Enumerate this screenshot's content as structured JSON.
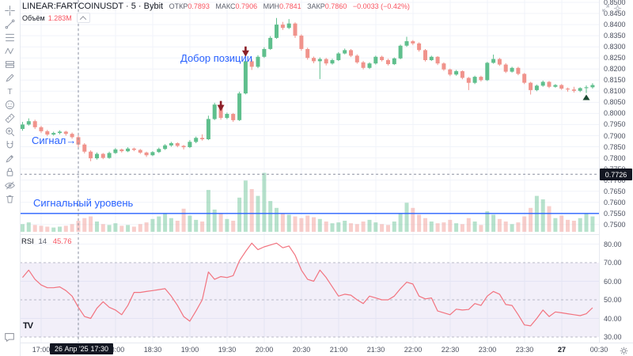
{
  "header": {
    "symbol_title": "LINEAR:FARTCOINUSDT · 5 · Bybit",
    "ohlc": {
      "open_label": "ОТКР",
      "open_value": "0.7893",
      "high_label": "МАКС",
      "high_value": "0.7906",
      "low_label": "МИН",
      "low_value": "0.7841",
      "close_label": "ЗАКР",
      "close_value": "0.7860",
      "change": "−0.0033 (−0.42%)"
    },
    "volume_label": "Объём",
    "volume_value": "1.283M"
  },
  "toolbar": {
    "tools": [
      "crosshair",
      "trend-line",
      "fib-retracement",
      "xabcd-pattern",
      "long-position",
      "brush",
      "text",
      "emoji",
      "measure",
      "zoom-in",
      "magnet",
      "draw-mode",
      "lock-all",
      "hide-all",
      "remove-all"
    ],
    "bottom_tool": "chat"
  },
  "annotations": {
    "signal": "Сигнал",
    "add_position": "Добор позиции",
    "signal_level": "Сигнальный уровень"
  },
  "indicator": {
    "name": "RSI",
    "period": "14",
    "value": "45.76"
  },
  "crosshair": {
    "price": "0.7726",
    "date": "26 Апр '25",
    "time": "17:30"
  },
  "axes": {
    "price_ticks": [
      "0.8500",
      "0.8450",
      "0.8400",
      "0.8350",
      "0.8300",
      "0.8250",
      "0.8200",
      "0.8150",
      "0.8100",
      "0.8050",
      "0.8000",
      "0.7950",
      "0.7900",
      "0.7850",
      "0.7800",
      "0.7750",
      "0.7700",
      "0.7650",
      "0.7600",
      "0.7550",
      "0.7500"
    ],
    "rsi_ticks": [
      "80.00",
      "70.00",
      "60.00",
      "50.00",
      "40.00",
      "30.00"
    ],
    "time_ticks": [
      "17:00",
      "17:30",
      "18:00",
      "18:30",
      "19:00",
      "19:30",
      "20:00",
      "20:30",
      "21:00",
      "21:30",
      "22:00",
      "22:30",
      "23:00",
      "23:30",
      "27",
      "00:30"
    ]
  },
  "colors": {
    "up": "#5fbf8d",
    "down": "#f0938c",
    "accent": "#2962ff",
    "rsi_line": "#f2737f",
    "value_red": "#f7525f",
    "crosshair_label_bg": "#131722",
    "rsi_band_fill": "rgba(124,98,200,0.10)",
    "grid": "#f0f3fa"
  },
  "chart_data": {
    "type": "candlestick",
    "symbol": "LINEAR:FARTCOINUSDT",
    "interval": "5",
    "exchange": "Bybit",
    "start_time": "16:45",
    "step_minutes": 5,
    "visible_price_range": [
      0.75,
      0.85
    ],
    "rsi_period": 14,
    "rsi_last": 45.76,
    "signal_level_price": 0.755,
    "crosshair_price": 0.7726,
    "crosshair_candle": 9,
    "candles": [
      [
        0.793,
        0.7962,
        0.7922,
        0.795,
        0.9
      ],
      [
        0.795,
        0.7978,
        0.7945,
        0.7965,
        1.1
      ],
      [
        0.7965,
        0.7972,
        0.793,
        0.7938,
        0.8
      ],
      [
        0.7938,
        0.7944,
        0.7912,
        0.792,
        0.7
      ],
      [
        0.792,
        0.7926,
        0.7898,
        0.7905,
        0.6
      ],
      [
        0.7905,
        0.7918,
        0.79,
        0.7912,
        0.5
      ],
      [
        0.7912,
        0.7924,
        0.7906,
        0.7918,
        0.6
      ],
      [
        0.7918,
        0.7922,
        0.79,
        0.7908,
        0.7
      ],
      [
        0.7908,
        0.7914,
        0.7886,
        0.7893,
        0.9
      ],
      [
        0.7893,
        0.7906,
        0.7841,
        0.786,
        1.283
      ],
      [
        0.786,
        0.7866,
        0.782,
        0.7828,
        1.6
      ],
      [
        0.7828,
        0.7834,
        0.7785,
        0.7798,
        1.8
      ],
      [
        0.7798,
        0.7824,
        0.7792,
        0.7818,
        1.2
      ],
      [
        0.7818,
        0.7822,
        0.7794,
        0.78,
        0.9
      ],
      [
        0.78,
        0.7828,
        0.7796,
        0.7822,
        0.8
      ],
      [
        0.7822,
        0.7844,
        0.7818,
        0.7838,
        1.0
      ],
      [
        0.7838,
        0.7842,
        0.7824,
        0.783,
        0.7
      ],
      [
        0.783,
        0.7848,
        0.7826,
        0.7842,
        0.8
      ],
      [
        0.7842,
        0.7846,
        0.783,
        0.7836,
        0.6
      ],
      [
        0.7836,
        0.784,
        0.7818,
        0.7824,
        0.9
      ],
      [
        0.7824,
        0.7828,
        0.7804,
        0.7812,
        1.1
      ],
      [
        0.7812,
        0.783,
        0.7808,
        0.7826,
        1.5
      ],
      [
        0.7826,
        0.7846,
        0.7822,
        0.784,
        1.8
      ],
      [
        0.784,
        0.7862,
        0.7836,
        0.7856,
        2.2
      ],
      [
        0.7856,
        0.7872,
        0.785,
        0.7866,
        1.6
      ],
      [
        0.7866,
        0.787,
        0.7848,
        0.7854,
        1.3
      ],
      [
        0.7854,
        0.7858,
        0.7838,
        0.7848,
        2.7
      ],
      [
        0.7848,
        0.788,
        0.7844,
        0.7872,
        1.9
      ],
      [
        0.7872,
        0.7896,
        0.7866,
        0.789,
        1.4
      ],
      [
        0.789,
        0.7906,
        0.7878,
        0.7884,
        1.2
      ],
      [
        0.7884,
        0.799,
        0.788,
        0.7975,
        4.9
      ],
      [
        0.7975,
        0.8048,
        0.797,
        0.804,
        2.6
      ],
      [
        0.804,
        0.8046,
        0.7972,
        0.798,
        2.2
      ],
      [
        0.798,
        0.8004,
        0.7974,
        0.7998,
        1.5
      ],
      [
        0.7998,
        0.8002,
        0.7962,
        0.797,
        1.3
      ],
      [
        0.797,
        0.8098,
        0.7966,
        0.809,
        4.0
      ],
      [
        0.809,
        0.8242,
        0.8086,
        0.8235,
        6.0
      ],
      [
        0.8235,
        0.8244,
        0.8196,
        0.821,
        5.0
      ],
      [
        0.821,
        0.8262,
        0.8204,
        0.8255,
        4.2
      ],
      [
        0.8255,
        0.8298,
        0.825,
        0.829,
        6.9
      ],
      [
        0.829,
        0.8348,
        0.8286,
        0.834,
        3.6
      ],
      [
        0.834,
        0.843,
        0.8336,
        0.84,
        2.8
      ],
      [
        0.84,
        0.8412,
        0.8376,
        0.8385,
        2.2
      ],
      [
        0.8385,
        0.8425,
        0.838,
        0.8405,
        2.0
      ],
      [
        0.8405,
        0.841,
        0.834,
        0.835,
        1.8
      ],
      [
        0.835,
        0.8356,
        0.8282,
        0.829,
        1.6
      ],
      [
        0.829,
        0.8296,
        0.8242,
        0.825,
        1.9
      ],
      [
        0.825,
        0.8256,
        0.8226,
        0.8235,
        1.7
      ],
      [
        0.8235,
        0.8252,
        0.8155,
        0.8245,
        1.5
      ],
      [
        0.8245,
        0.825,
        0.8216,
        0.8225,
        1.2
      ],
      [
        0.8225,
        0.8246,
        0.822,
        0.824,
        1.0
      ],
      [
        0.824,
        0.8276,
        0.8236,
        0.827,
        1.1
      ],
      [
        0.827,
        0.8292,
        0.8266,
        0.8285,
        1.3
      ],
      [
        0.8285,
        0.829,
        0.8254,
        0.826,
        1.0
      ],
      [
        0.826,
        0.8266,
        0.8224,
        0.823,
        0.9
      ],
      [
        0.823,
        0.8236,
        0.8198,
        0.8205,
        1.2
      ],
      [
        0.8205,
        0.823,
        0.82,
        0.8225,
        1.4
      ],
      [
        0.8225,
        0.826,
        0.822,
        0.8255,
        1.1
      ],
      [
        0.8255,
        0.826,
        0.8234,
        0.824,
        0.9
      ],
      [
        0.824,
        0.8246,
        0.8216,
        0.8222,
        0.8
      ],
      [
        0.8222,
        0.8252,
        0.8218,
        0.8248,
        1.2
      ],
      [
        0.8248,
        0.831,
        0.8244,
        0.8305,
        2.2
      ],
      [
        0.8305,
        0.8345,
        0.83,
        0.8325,
        3.4
      ],
      [
        0.8325,
        0.833,
        0.8308,
        0.8315,
        2.8
      ],
      [
        0.8315,
        0.832,
        0.8278,
        0.8285,
        2.0
      ],
      [
        0.8285,
        0.829,
        0.8234,
        0.824,
        1.6
      ],
      [
        0.824,
        0.826,
        0.8236,
        0.8255,
        1.2
      ],
      [
        0.8255,
        0.8258,
        0.8218,
        0.8225,
        1.0
      ],
      [
        0.8225,
        0.823,
        0.8192,
        0.8198,
        1.1
      ],
      [
        0.8198,
        0.8202,
        0.8168,
        0.8175,
        1.4
      ],
      [
        0.8175,
        0.8196,
        0.817,
        0.819,
        1.0
      ],
      [
        0.819,
        0.8194,
        0.8154,
        0.816,
        0.9
      ],
      [
        0.816,
        0.8164,
        0.8105,
        0.8138,
        1.6
      ],
      [
        0.8138,
        0.817,
        0.8132,
        0.8165,
        1.2
      ],
      [
        0.8165,
        0.817,
        0.8144,
        0.815,
        0.8
      ],
      [
        0.815,
        0.8232,
        0.8146,
        0.8228,
        2.4
      ],
      [
        0.8228,
        0.8265,
        0.8224,
        0.8245,
        2.0
      ],
      [
        0.8245,
        0.825,
        0.8214,
        0.822,
        1.5
      ],
      [
        0.822,
        0.8226,
        0.8182,
        0.8188,
        1.2
      ],
      [
        0.8188,
        0.821,
        0.8184,
        0.8205,
        0.9
      ],
      [
        0.8205,
        0.821,
        0.8172,
        0.8178,
        1.1
      ],
      [
        0.8178,
        0.8182,
        0.8132,
        0.8138,
        1.8
      ],
      [
        0.8138,
        0.8142,
        0.8085,
        0.8105,
        2.8
      ],
      [
        0.8105,
        0.813,
        0.81,
        0.8125,
        4.2
      ],
      [
        0.8125,
        0.8148,
        0.812,
        0.8142,
        3.8
      ],
      [
        0.8142,
        0.8146,
        0.8114,
        0.812,
        3.0
      ],
      [
        0.812,
        0.8132,
        0.8116,
        0.8128,
        1.6
      ],
      [
        0.8128,
        0.8132,
        0.8106,
        0.8112,
        1.9
      ],
      [
        0.8112,
        0.8116,
        0.8098,
        0.8108,
        1.4
      ],
      [
        0.8108,
        0.812,
        0.8094,
        0.8102,
        1.3
      ],
      [
        0.8102,
        0.8118,
        0.8096,
        0.8114,
        1.6
      ],
      [
        0.8114,
        0.8126,
        0.8092,
        0.8118,
        2.1
      ],
      [
        0.8118,
        0.8136,
        0.8112,
        0.8128,
        1.8
      ]
    ],
    "rsi": [
      62,
      66,
      61,
      58,
      56.5,
      56.5,
      57,
      55,
      52,
      46,
      41,
      40,
      45.5,
      49,
      46,
      44.5,
      42,
      47,
      54,
      54,
      54.5,
      55,
      55.5,
      56,
      52,
      47,
      41,
      38.5,
      44,
      50,
      65,
      61,
      62.5,
      62,
      63,
      71,
      76,
      80.5,
      77,
      78.5,
      79.5,
      80.5,
      78,
      79,
      74,
      66,
      61,
      60,
      66,
      62,
      57,
      52,
      53,
      52.5,
      50,
      48,
      52,
      51,
      50,
      50,
      52,
      56,
      59.5,
      58.5,
      52,
      50.5,
      51,
      44,
      43,
      42,
      45,
      44.5,
      44.8,
      48,
      47,
      52,
      54.5,
      53,
      47.5,
      47,
      42,
      36.5,
      36,
      40,
      44.5,
      41,
      43.5,
      43,
      42.5,
      42,
      41.5,
      42.5,
      45.76
    ],
    "markers": [
      {
        "candle": 32,
        "type": "arrow_down",
        "price": 0.801,
        "color": "#8c1f28"
      },
      {
        "candle": 36,
        "type": "arrow_down",
        "price": 0.8255,
        "color": "#8c1f28"
      },
      {
        "candle": 91,
        "type": "triangle_up",
        "price": 0.8085,
        "color": "#1b4a32"
      }
    ]
  }
}
